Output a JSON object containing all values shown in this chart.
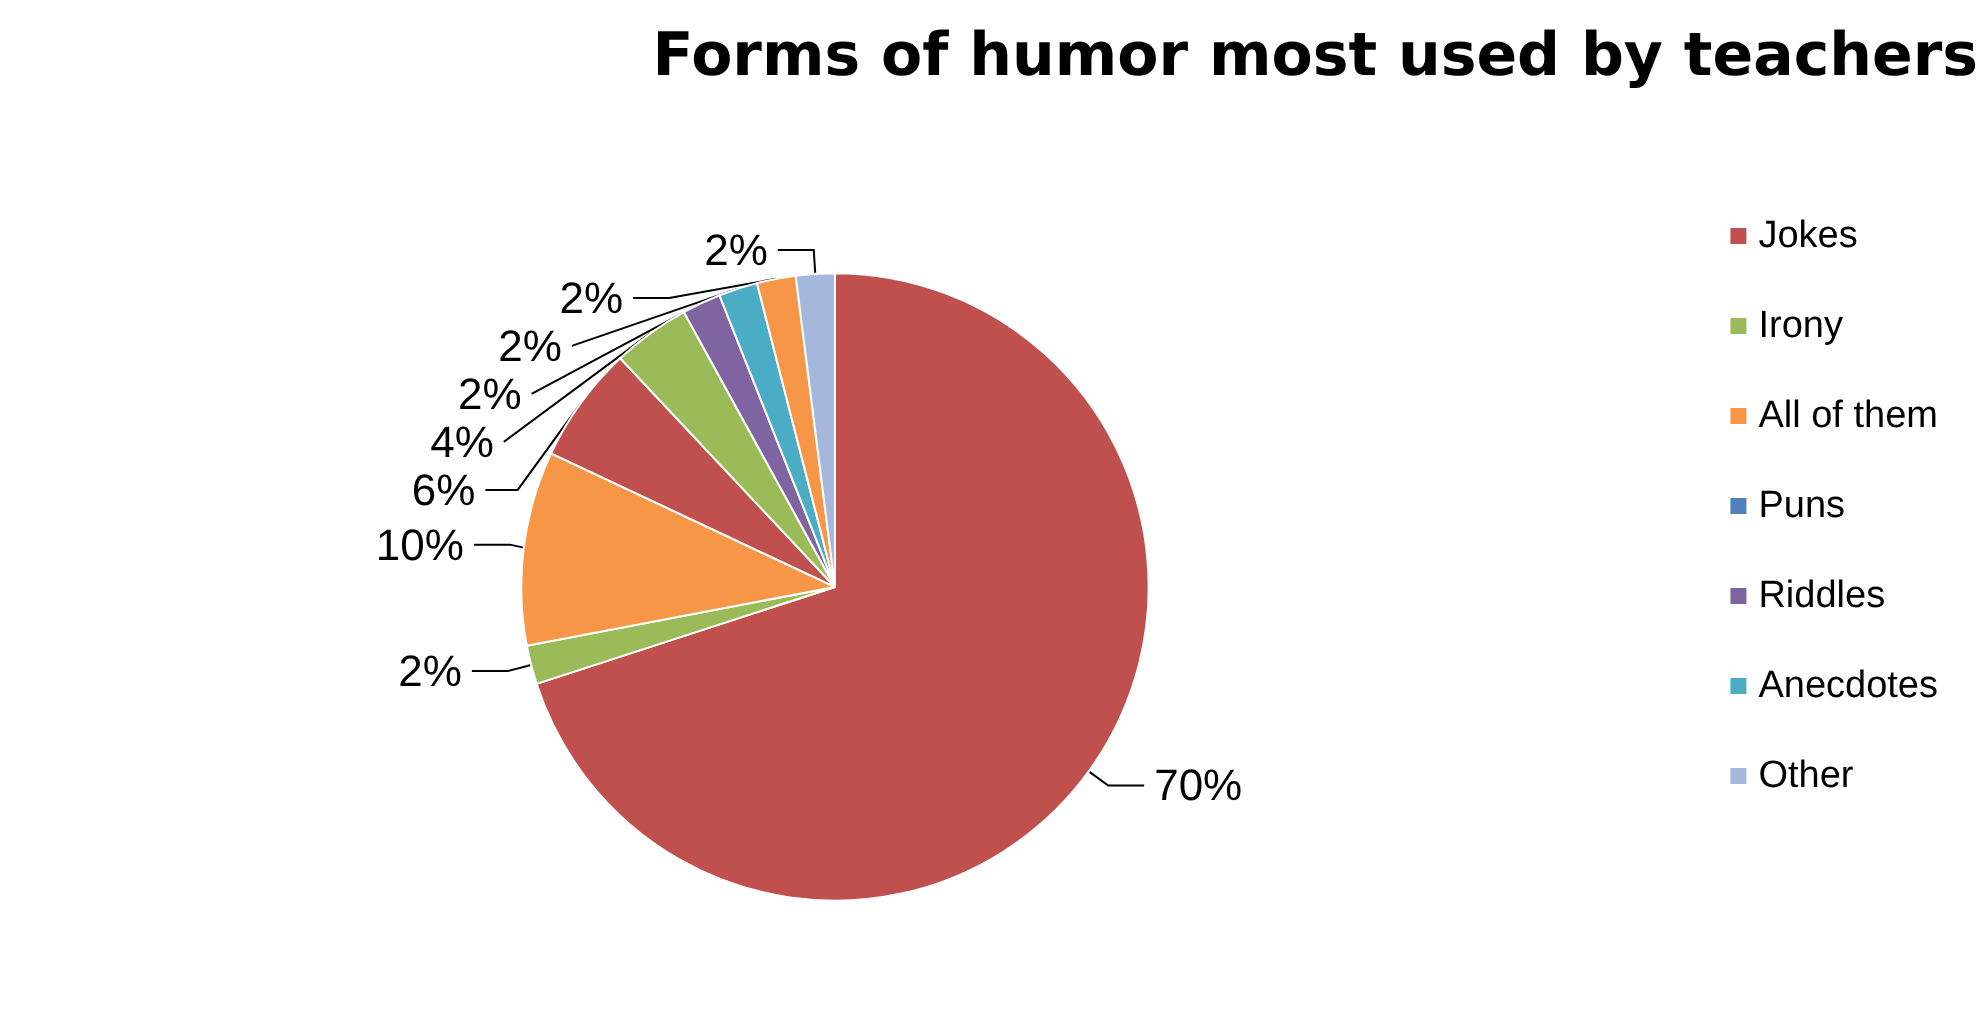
{
  "chart_data": {
    "type": "pie",
    "title": "Forms of humor most used by teachers",
    "categories": [
      "Jokes",
      "Irony",
      "All of them",
      "Puns",
      null,
      null,
      "Riddles",
      "Anecdotes",
      null,
      "Other"
    ],
    "values": [
      70,
      2,
      10,
      0,
      6,
      4,
      2,
      2,
      2,
      2
    ],
    "colors": [
      "#c0504d",
      "#9bbb59",
      "#f79646",
      "#4f81bd",
      "#c0504d",
      "#9bbb59",
      "#8064a2",
      "#4bacc6",
      "#f79646",
      "#a5b8dc"
    ],
    "value_labels": [
      "70%",
      "2%",
      "10%",
      null,
      "6%",
      "4%",
      "2%",
      "2%",
      "2%",
      "2%"
    ],
    "legend": "right"
  }
}
